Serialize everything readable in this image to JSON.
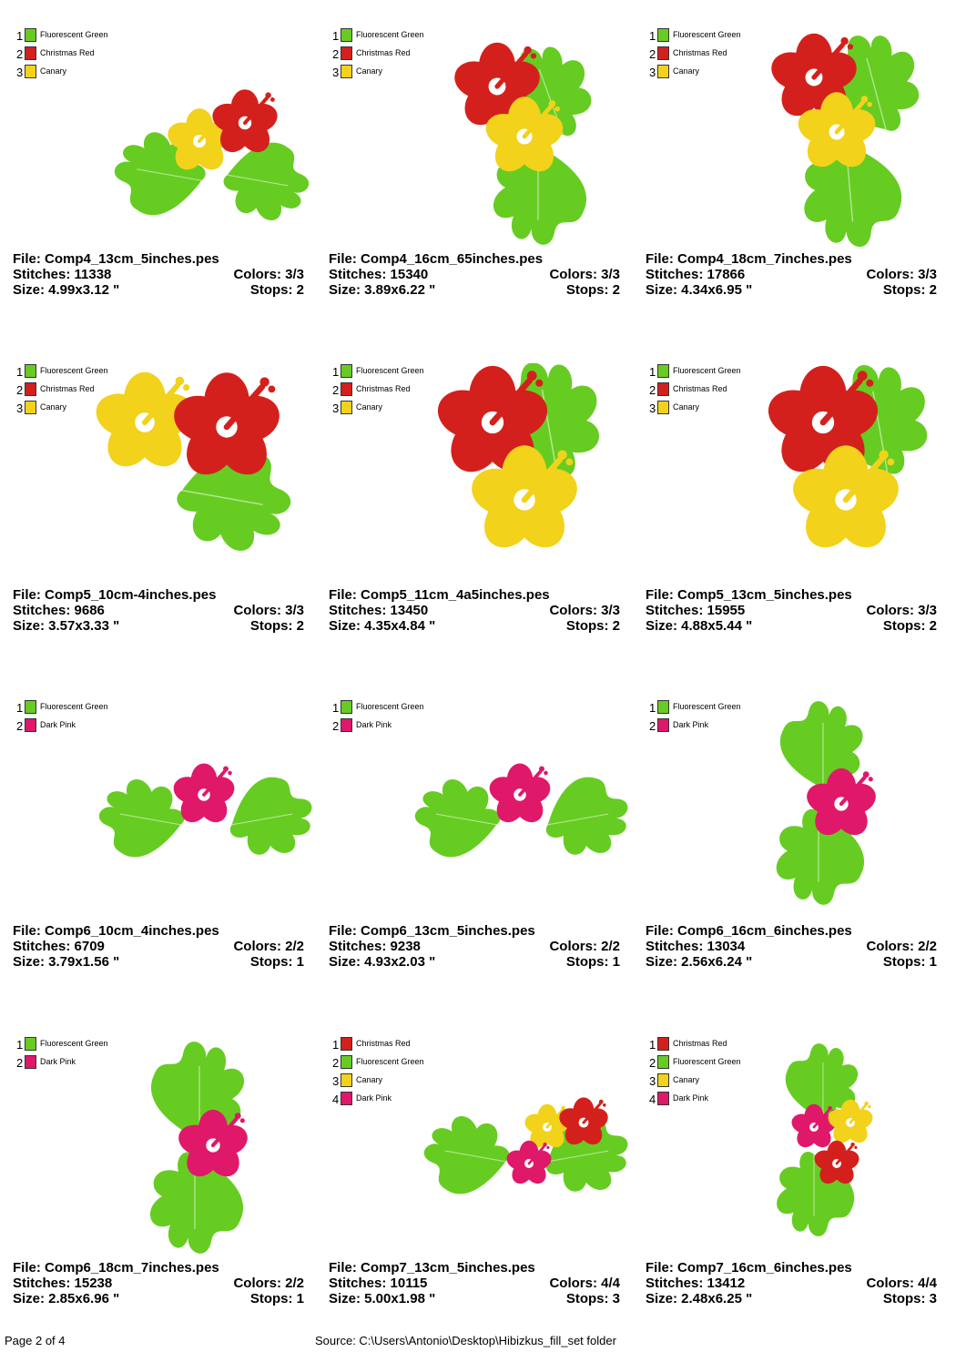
{
  "colors": {
    "fluorescent_green": "#66cc22",
    "christmas_red": "#d4201c",
    "canary": "#f2d21a",
    "dark_pink": "#e0186a"
  },
  "cells": [
    {
      "legend": [
        {
          "num": "1",
          "name": "Fluorescent Green",
          "color": "#66cc22"
        },
        {
          "num": "2",
          "name": "Christmas Red",
          "color": "#d4201c"
        },
        {
          "num": "3",
          "name": "Canary",
          "color": "#f2d21a"
        }
      ],
      "file": "File: Comp4_13cm_5inches.pes",
      "stitches": "Stitches: 11338",
      "colors": "Colors: 3/3",
      "size": "Size: 4.99x3.12 \"",
      "stops": "Stops: 2"
    },
    {
      "legend": [
        {
          "num": "1",
          "name": "Fluorescent Green",
          "color": "#66cc22"
        },
        {
          "num": "2",
          "name": "Christmas Red",
          "color": "#d4201c"
        },
        {
          "num": "3",
          "name": "Canary",
          "color": "#f2d21a"
        }
      ],
      "file": "File: Comp4_16cm_65inches.pes",
      "stitches": "Stitches: 15340",
      "colors": "Colors: 3/3",
      "size": "Size: 3.89x6.22 \"",
      "stops": "Stops: 2"
    },
    {
      "legend": [
        {
          "num": "1",
          "name": "Fluorescent Green",
          "color": "#66cc22"
        },
        {
          "num": "2",
          "name": "Christmas Red",
          "color": "#d4201c"
        },
        {
          "num": "3",
          "name": "Canary",
          "color": "#f2d21a"
        }
      ],
      "file": "File: Comp4_18cm_7inches.pes",
      "stitches": "Stitches: 17866",
      "colors": "Colors: 3/3",
      "size": "Size: 4.34x6.95 \"",
      "stops": "Stops: 2"
    },
    {
      "legend": [
        {
          "num": "1",
          "name": "Fluorescent Green",
          "color": "#66cc22"
        },
        {
          "num": "2",
          "name": "Christmas Red",
          "color": "#d4201c"
        },
        {
          "num": "3",
          "name": "Canary",
          "color": "#f2d21a"
        }
      ],
      "file": "File: Comp5_10cm-4inches.pes",
      "stitches": "Stitches: 9686",
      "colors": "Colors: 3/3",
      "size": "Size: 3.57x3.33 \"",
      "stops": "Stops: 2"
    },
    {
      "legend": [
        {
          "num": "1",
          "name": "Fluorescent Green",
          "color": "#66cc22"
        },
        {
          "num": "2",
          "name": "Christmas Red",
          "color": "#d4201c"
        },
        {
          "num": "3",
          "name": "Canary",
          "color": "#f2d21a"
        }
      ],
      "file": "File: Comp5_11cm_4a5inches.pes",
      "stitches": "Stitches: 13450",
      "colors": "Colors: 3/3",
      "size": "Size: 4.35x4.84 \"",
      "stops": "Stops: 2"
    },
    {
      "legend": [
        {
          "num": "1",
          "name": "Fluorescent Green",
          "color": "#66cc22"
        },
        {
          "num": "2",
          "name": "Christmas Red",
          "color": "#d4201c"
        },
        {
          "num": "3",
          "name": "Canary",
          "color": "#f2d21a"
        }
      ],
      "file": "File: Comp5_13cm_5inches.pes",
      "stitches": "Stitches: 15955",
      "colors": "Colors: 3/3",
      "size": "Size: 4.88x5.44 \"",
      "stops": "Stops: 2"
    },
    {
      "legend": [
        {
          "num": "1",
          "name": "Fluorescent Green",
          "color": "#66cc22"
        },
        {
          "num": "2",
          "name": "Dark Pink",
          "color": "#e0186a"
        }
      ],
      "file": "File: Comp6_10cm_4inches.pes",
      "stitches": "Stitches: 6709",
      "colors": "Colors: 2/2",
      "size": "Size: 3.79x1.56 \"",
      "stops": "Stops: 1"
    },
    {
      "legend": [
        {
          "num": "1",
          "name": "Fluorescent Green",
          "color": "#66cc22"
        },
        {
          "num": "2",
          "name": "Dark Pink",
          "color": "#e0186a"
        }
      ],
      "file": "File: Comp6_13cm_5inches.pes",
      "stitches": "Stitches: 9238",
      "colors": "Colors: 2/2",
      "size": "Size: 4.93x2.03 \"",
      "stops": "Stops: 1"
    },
    {
      "legend": [
        {
          "num": "1",
          "name": "Fluorescent Green",
          "color": "#66cc22"
        },
        {
          "num": "2",
          "name": "Dark Pink",
          "color": "#e0186a"
        }
      ],
      "file": "File: Comp6_16cm_6inches.pes",
      "stitches": "Stitches: 13034",
      "colors": "Colors: 2/2",
      "size": "Size: 2.56x6.24 \"",
      "stops": "Stops: 1"
    },
    {
      "legend": [
        {
          "num": "1",
          "name": "Fluorescent Green",
          "color": "#66cc22"
        },
        {
          "num": "2",
          "name": "Dark Pink",
          "color": "#e0186a"
        }
      ],
      "file": "File: Comp6_18cm_7inches.pes",
      "stitches": "Stitches: 15238",
      "colors": "Colors: 2/2",
      "size": "Size: 2.85x6.96 \"",
      "stops": "Stops: 1"
    },
    {
      "legend": [
        {
          "num": "1",
          "name": "Christmas Red",
          "color": "#d4201c"
        },
        {
          "num": "2",
          "name": "Fluorescent Green",
          "color": "#66cc22"
        },
        {
          "num": "3",
          "name": "Canary",
          "color": "#f2d21a"
        },
        {
          "num": "4",
          "name": "Dark Pink",
          "color": "#e0186a"
        }
      ],
      "file": "File: Comp7_13cm_5inches.pes",
      "stitches": "Stitches: 10115",
      "colors": "Colors: 4/4",
      "size": "Size: 5.00x1.98 \"",
      "stops": "Stops: 3"
    },
    {
      "legend": [
        {
          "num": "1",
          "name": "Christmas Red",
          "color": "#d4201c"
        },
        {
          "num": "2",
          "name": "Fluorescent Green",
          "color": "#66cc22"
        },
        {
          "num": "3",
          "name": "Canary",
          "color": "#f2d21a"
        },
        {
          "num": "4",
          "name": "Dark Pink",
          "color": "#e0186a"
        }
      ],
      "file": "File: Comp7_16cm_6inches.pes",
      "stitches": "Stitches: 13412",
      "colors": "Colors: 4/4",
      "size": "Size: 2.48x6.25 \"",
      "stops": "Stops: 3"
    }
  ],
  "footer": {
    "page": "Page 2 of 4",
    "source": "Source: C:\\Users\\Antonio\\Desktop\\Hibizkus_fill_set folder"
  }
}
